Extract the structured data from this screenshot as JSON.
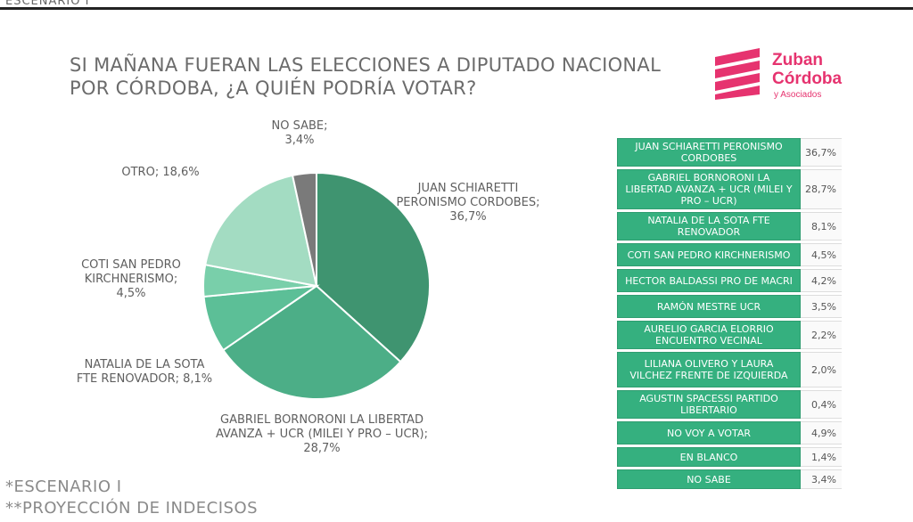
{
  "header": {
    "cut_text": "ESCENARIO I"
  },
  "title_line1": "SI MAÑANA FUERAN LAS ELECCIONES A DIPUTADO NACIONAL",
  "title_line2": "POR CÓRDOBA, ¿A QUIÉN PODRÍA VOTAR?",
  "logo": {
    "line1": "Zuban",
    "line2": "Córdoba",
    "line3": "y Asociados",
    "color": "#e6336f"
  },
  "footer": {
    "line1": "*ESCENARIO I",
    "line2": "**PROYECCIÓN DE INDECISOS"
  },
  "chart_data": {
    "type": "pie",
    "categories": [
      "JUAN SCHIARETTI PERONISMO CORDOBES",
      "GABRIEL BORNORONI LA LIBERTAD AVANZA + UCR (MILEI Y PRO – UCR)",
      "NATALIA DE LA SOTA FTE RENOVADOR",
      "COTI SAN PEDRO KIRCHNERISMO",
      "OTRO",
      "NO SABE"
    ],
    "values": [
      36.7,
      28.7,
      8.1,
      4.5,
      18.6,
      3.4
    ],
    "colors": [
      "#3f9470",
      "#4cae87",
      "#5cbf97",
      "#79cfaa",
      "#a3dcc2",
      "#7a7a7a"
    ],
    "labels": {
      "schiaretti": [
        "JUAN SCHIARETTI",
        "PERONISMO CORDOBES;",
        "36,7%"
      ],
      "bornoroni": [
        "GABRIEL BORNORONI LA LIBERTAD",
        "AVANZA + UCR (MILEI Y PRO – UCR);",
        "28,7%"
      ],
      "delasota": [
        "NATALIA DE LA SOTA",
        "FTE RENOVADOR; 8,1%"
      ],
      "sanpedro": [
        "COTI SAN PEDRO",
        "KIRCHNERISMO;",
        "4,5%"
      ],
      "otro": [
        "OTRO; 18,6%"
      ],
      "nosabe": [
        "NO SABE;",
        "3,4%"
      ]
    }
  },
  "table": [
    {
      "name": "JUAN SCHIARETTI PERONISMO CORDOBES",
      "value": "36,7%"
    },
    {
      "name": "GABRIEL BORNORONI LA LIBERTAD AVANZA + UCR (MILEI Y PRO – UCR)",
      "value": "28,7%"
    },
    {
      "name": "NATALIA DE LA SOTA FTE RENOVADOR",
      "value": "8,1%"
    },
    {
      "name": "COTI SAN PEDRO KIRCHNERISMO",
      "value": "4,5%"
    },
    {
      "name": "HECTOR BALDASSI PRO DE MACRI",
      "value": "4,2%"
    },
    {
      "name": "RAMÓN MESTRE UCR",
      "value": "3,5%"
    },
    {
      "name": "AURELIO GARCIA ELORRIO ENCUENTRO VECINAL",
      "value": "2,2%"
    },
    {
      "name": "LILIANA OLIVERO Y LAURA VILCHEZ FRENTE DE IZQUIERDA",
      "value": "2,0%"
    },
    {
      "name": "AGUSTIN SPACESSI PARTIDO LIBERTARIO",
      "value": "0,4%"
    },
    {
      "name": "NO VOY A VOTAR",
      "value": "4,9%"
    },
    {
      "name": "EN BLANCO",
      "value": "1,4%"
    },
    {
      "name": "NO SABE",
      "value": "3,4%"
    }
  ]
}
